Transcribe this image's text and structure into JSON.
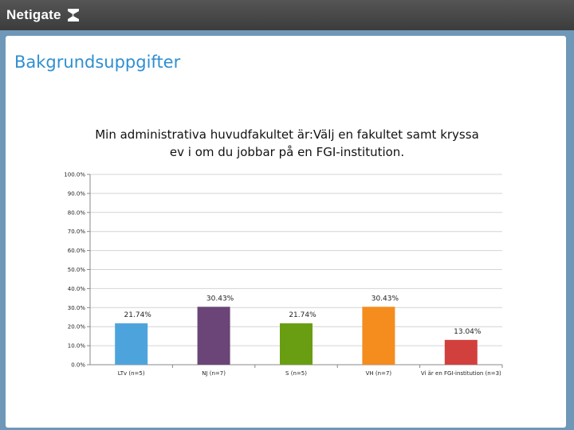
{
  "header": {
    "logo_text": "Netigate",
    "logo_icon": "netigate-mark-icon"
  },
  "page": {
    "section_title": "Bakgrundsuppgifter"
  },
  "chart_data": {
    "type": "bar",
    "title": "Min administrativa huvudfakultet är:Välj en fakultet samt kryssa ev i om du jobbar på en FGI-institution.",
    "categories": [
      "LTv (n=5)",
      "NJ (n=7)",
      "S (n=5)",
      "VH (n=7)",
      "Vi är en FGI-institution (n=3)"
    ],
    "values": [
      21.74,
      30.43,
      21.74,
      30.43,
      13.04
    ],
    "data_labels": [
      "21.74%",
      "30.43%",
      "21.74%",
      "30.43%",
      "13.04%"
    ],
    "colors": [
      "#4da4dd",
      "#6b4577",
      "#6a9e12",
      "#f48c1e",
      "#d2403e"
    ],
    "ylim": [
      0,
      100
    ],
    "yticks": [
      "0.0%",
      "10.0%",
      "20.0%",
      "30.0%",
      "40.0%",
      "50.0%",
      "60.0%",
      "70.0%",
      "80.0%",
      "90.0%",
      "100.0%"
    ],
    "grid": true,
    "legend": "none"
  }
}
